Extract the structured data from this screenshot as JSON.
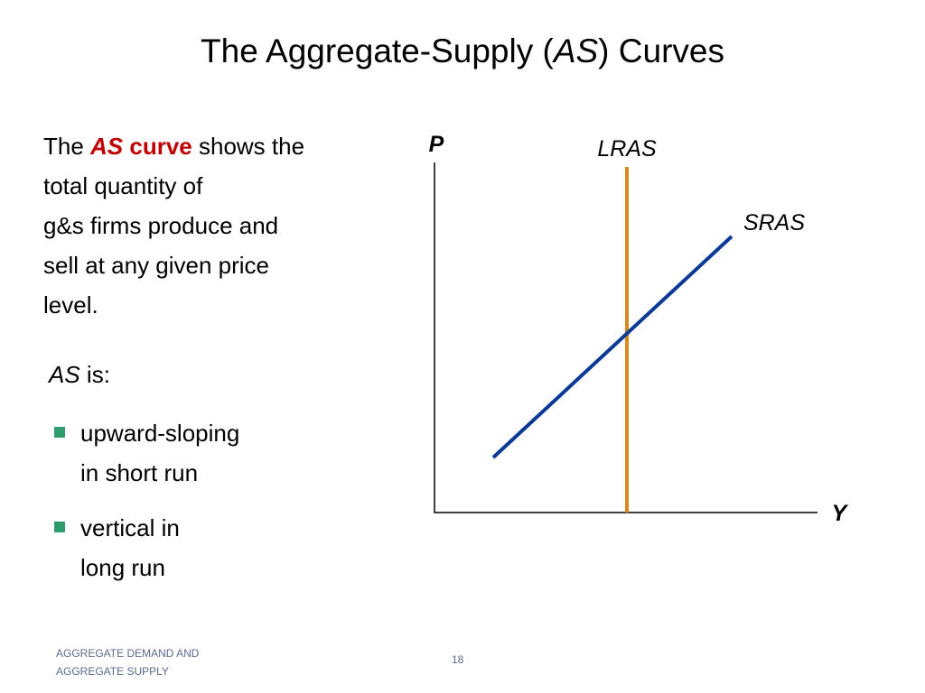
{
  "title": {
    "runs": [
      "The Aggregate-Supply (",
      "AS",
      ") Curves"
    ]
  },
  "intro": {
    "runs": [
      "The ",
      "AS",
      " curve",
      " shows the"
    ],
    "lines": [
      "total quantity of",
      "g&s firms produce and",
      "sell at any given price",
      "level."
    ]
  },
  "subhead": {
    "runs": [
      "AS",
      " is:"
    ]
  },
  "bullets": [
    {
      "lines": [
        "upward-sloping",
        "in short run"
      ]
    },
    {
      "lines": [
        "vertical in",
        "long run"
      ]
    }
  ],
  "diagram": {
    "y_axis_label": "P",
    "x_axis_label": "Y",
    "curves": [
      "LRAS",
      "SRAS"
    ]
  },
  "footer": {
    "lines": [
      "AGGREGATE DEMAND AND",
      "AGGREGATE SUPPLY"
    ],
    "page": "18"
  }
}
